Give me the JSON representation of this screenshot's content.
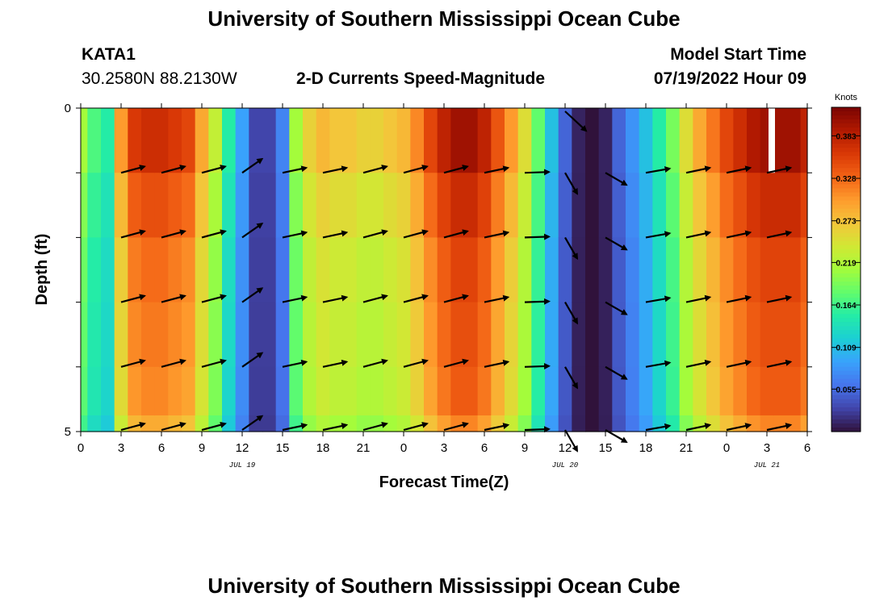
{
  "header": {
    "title": "University of Southern Mississippi Ocean Cube",
    "station": "KATA1",
    "coords": "30.2580N  88.2130W",
    "chart_title": "2-D Currents Speed-Magnitude",
    "model_label": "Model Start Time",
    "model_time": "07/19/2022 Hour 09"
  },
  "footer": {
    "title": "University of Southern Mississippi Ocean Cube"
  },
  "colors": {
    "background": "#ffffff",
    "arrow": "#000000"
  },
  "chart_data": {
    "type": "heatmap",
    "title": "2-D Currents Speed-Magnitude",
    "xlabel": "Forecast Time(Z)",
    "ylabel": "Depth (ft)",
    "x_tick_labels": [
      "0",
      "3",
      "6",
      "9",
      "12",
      "15",
      "18",
      "21",
      "0",
      "3",
      "6",
      "9",
      "12",
      "15",
      "18",
      "21",
      "0",
      "3",
      "6"
    ],
    "x_day_labels": [
      {
        "label": "JUL 19",
        "tick_index": 4
      },
      {
        "label": "JUL 20",
        "tick_index": 12
      },
      {
        "label": "JUL 21",
        "tick_index": 17
      }
    ],
    "y_tick_labels": [
      "0",
      "5"
    ],
    "ylim": [
      0,
      5
    ],
    "depths_ft": [
      0.5,
      1.5,
      2.5,
      3.5,
      4.5,
      5.0
    ],
    "colorbar": {
      "unit": "Knots",
      "ticks": [
        "0.383",
        "0.328",
        "0.273",
        "0.219",
        "0.164",
        "0.109",
        "0.055"
      ],
      "range": [
        0.0,
        0.42
      ],
      "colormap": [
        "#30123b",
        "#4145ab",
        "#4675ed",
        "#39a2fc",
        "#1bcfd4",
        "#24eca6",
        "#61fc6c",
        "#a4fc3b",
        "#d1e834",
        "#f3c63a",
        "#fe9b2d",
        "#f36315",
        "#d93806",
        "#b11901",
        "#7a0403"
      ]
    },
    "time_hours": [
      0,
      1,
      2,
      3,
      4,
      5,
      6,
      7,
      8,
      9,
      10,
      11,
      12,
      13,
      14,
      15,
      16,
      17,
      18,
      19,
      20,
      21,
      22,
      23,
      24,
      25,
      26,
      27,
      28,
      29,
      30,
      31,
      32,
      33,
      34,
      35,
      36,
      37,
      38,
      39,
      40,
      41,
      42,
      43,
      44,
      45,
      46,
      47,
      48,
      49,
      50,
      51,
      52,
      53,
      54
    ],
    "speed_profile_knots": [
      0.21,
      0.17,
      0.15,
      0.3,
      0.36,
      0.37,
      0.37,
      0.36,
      0.35,
      0.29,
      0.23,
      0.15,
      0.09,
      0.03,
      0.03,
      0.07,
      0.21,
      0.26,
      0.28,
      0.27,
      0.27,
      0.26,
      0.26,
      0.27,
      0.28,
      0.31,
      0.35,
      0.38,
      0.4,
      0.4,
      0.38,
      0.34,
      0.3,
      0.25,
      0.18,
      0.11,
      0.05,
      0.01,
      0.0,
      0.01,
      0.05,
      0.08,
      0.11,
      0.15,
      0.19,
      0.25,
      0.29,
      0.32,
      0.35,
      0.37,
      0.39,
      0.4,
      0.4,
      0.4,
      0.38
    ],
    "depth_factor": [
      1.0,
      0.93,
      0.88,
      0.86,
      0.84,
      0.78
    ],
    "vector_times_hours": [
      3,
      6,
      9,
      12,
      15,
      18,
      21,
      24,
      27,
      30,
      33,
      36,
      39,
      42,
      45,
      48,
      51
    ],
    "vector_direction_deg": [
      15,
      15,
      15,
      35,
      12,
      12,
      15,
      15,
      15,
      12,
      2,
      -60,
      -30,
      10,
      12,
      12,
      12
    ],
    "missing_cells": [
      {
        "time_hours": 51,
        "depth_ft": 0.5
      }
    ]
  }
}
